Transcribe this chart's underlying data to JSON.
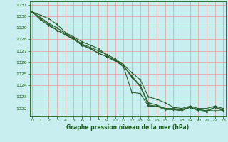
{
  "bg_color": "#c8eef0",
  "grid_color": "#e89898",
  "line_color": "#2a5c2a",
  "marker_color": "#2a5c2a",
  "xlabel": "Graphe pression niveau de la mer (hPa)",
  "xlabel_color": "#1a5c1a",
  "tick_color": "#1a5c1a",
  "ylim": [
    1021.3,
    1031.3
  ],
  "xlim": [
    -0.3,
    23.3
  ],
  "yticks": [
    1022,
    1023,
    1024,
    1025,
    1026,
    1027,
    1028,
    1029,
    1030,
    1031
  ],
  "xticks": [
    0,
    1,
    2,
    3,
    4,
    5,
    6,
    7,
    8,
    9,
    10,
    11,
    12,
    13,
    14,
    15,
    16,
    17,
    18,
    19,
    20,
    21,
    22,
    23
  ],
  "series": [
    [
      1030.4,
      1030.1,
      1029.8,
      1029.3,
      1028.6,
      1028.2,
      1027.8,
      1027.5,
      1027.2,
      1026.6,
      1026.2,
      1025.6,
      1023.4,
      1023.3,
      1022.2,
      1022.2,
      1022.0,
      1021.9,
      1021.8,
      1022.1,
      1021.9,
      1021.8,
      1021.8,
      1021.8
    ],
    [
      1030.4,
      1029.9,
      1029.4,
      1029.0,
      1028.5,
      1028.1,
      1027.6,
      1027.3,
      1027.0,
      1026.7,
      1026.3,
      1025.8,
      1025.1,
      1024.5,
      1023.0,
      1022.8,
      1022.5,
      1022.1,
      1022.0,
      1022.2,
      1022.0,
      1022.0,
      1022.2,
      1022.0
    ],
    [
      1030.4,
      1029.7,
      1029.2,
      1028.8,
      1028.4,
      1028.0,
      1027.5,
      1027.2,
      1026.8,
      1026.5,
      1026.2,
      1025.7,
      1024.8,
      1024.0,
      1022.5,
      1022.3,
      1022.0,
      1022.0,
      1021.9,
      1022.1,
      1021.9,
      1021.8,
      1022.1,
      1021.9
    ],
    [
      1030.4,
      1029.8,
      1029.3,
      1028.8,
      1028.4,
      1028.0,
      1027.5,
      1027.2,
      1026.8,
      1026.5,
      1026.1,
      1025.7,
      1024.7,
      1023.9,
      1022.3,
      1022.2,
      1021.9,
      1021.9,
      1021.9,
      1022.1,
      1021.8,
      1021.7,
      1022.1,
      1021.8
    ]
  ]
}
